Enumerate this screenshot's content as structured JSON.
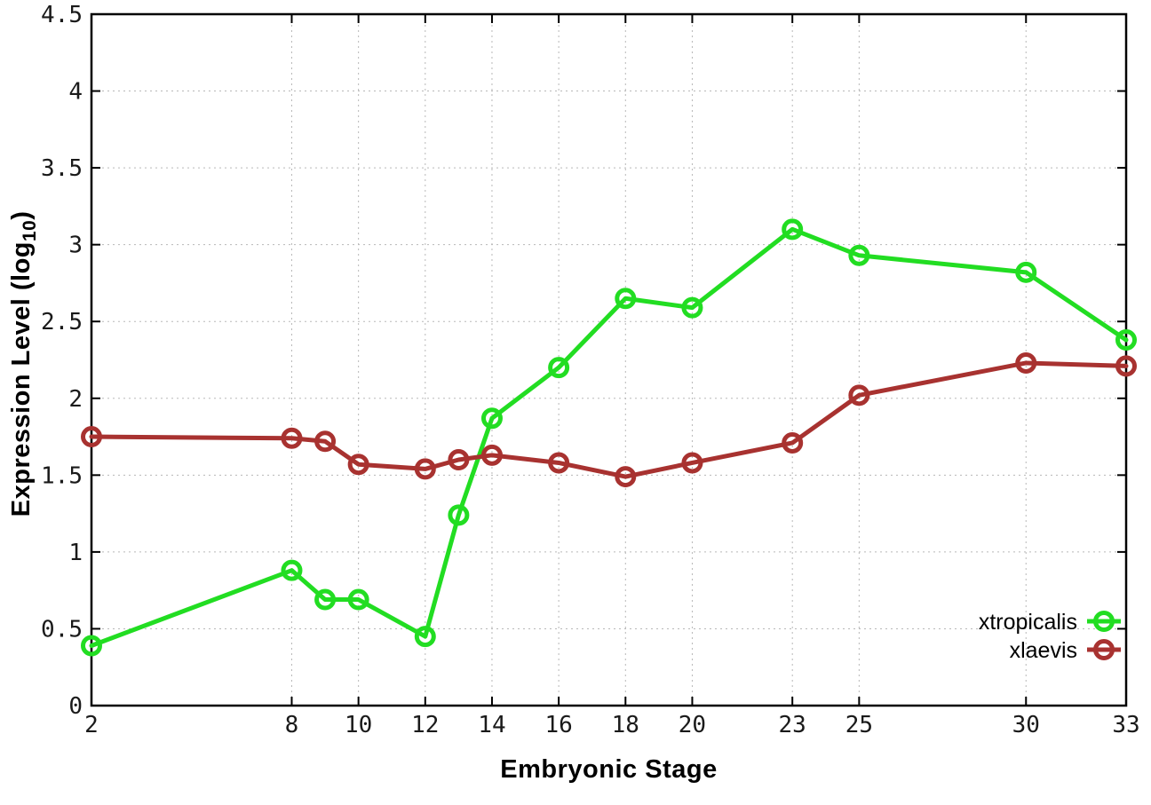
{
  "page": {
    "background": "#ffffff"
  },
  "chart_data": {
    "type": "line",
    "title": "",
    "xlabel": "Embryonic Stage",
    "ylabel": {
      "full": "Expression Level (log10)",
      "main": "Expression Level (log",
      "sub": "10",
      "suffix": ")"
    },
    "x": [
      2,
      8,
      9,
      10,
      12,
      13,
      14,
      16,
      18,
      20,
      23,
      25,
      30,
      33
    ],
    "series": [
      {
        "name": "xtropicalis",
        "color": "#22dd22",
        "values": [
          0.39,
          0.88,
          0.69,
          0.69,
          0.45,
          1.24,
          1.87,
          2.2,
          2.65,
          2.59,
          3.1,
          2.93,
          2.82,
          2.38
        ]
      },
      {
        "name": "xlaevis",
        "color": "#a83230",
        "values": [
          1.75,
          1.74,
          1.72,
          1.57,
          1.54,
          1.6,
          1.63,
          1.58,
          1.49,
          1.58,
          1.71,
          2.02,
          2.23,
          2.21
        ]
      }
    ],
    "xlim": [
      2,
      33
    ],
    "ylim": [
      0,
      4.5
    ],
    "xticks": {
      "values": [
        2,
        8,
        10,
        12,
        14,
        16,
        18,
        20,
        23,
        25,
        30,
        33
      ],
      "labels": [
        "2",
        "8",
        "10",
        "12",
        "14",
        "16",
        "18",
        "20",
        "23",
        "25",
        "30",
        "33"
      ]
    },
    "yticks": {
      "values": [
        0,
        0.5,
        1,
        1.5,
        2,
        2.5,
        3,
        3.5,
        4,
        4.5
      ],
      "labels": [
        "0",
        "0.5",
        "1",
        "1.5",
        "2",
        "2.5",
        "3",
        "3.5",
        "4",
        "4.5"
      ]
    },
    "grid": true,
    "legend": {
      "position": "inside-bottom-right",
      "entries": [
        "xtropicalis",
        "xlaevis"
      ]
    },
    "style": {
      "axis_color": "#000000",
      "grid_color": "#b8b8b8",
      "tick_label_color": "#1a1a1a",
      "line_width": 5,
      "marker": "open-circle",
      "marker_radius": 9.5,
      "marker_stroke": 5
    }
  }
}
